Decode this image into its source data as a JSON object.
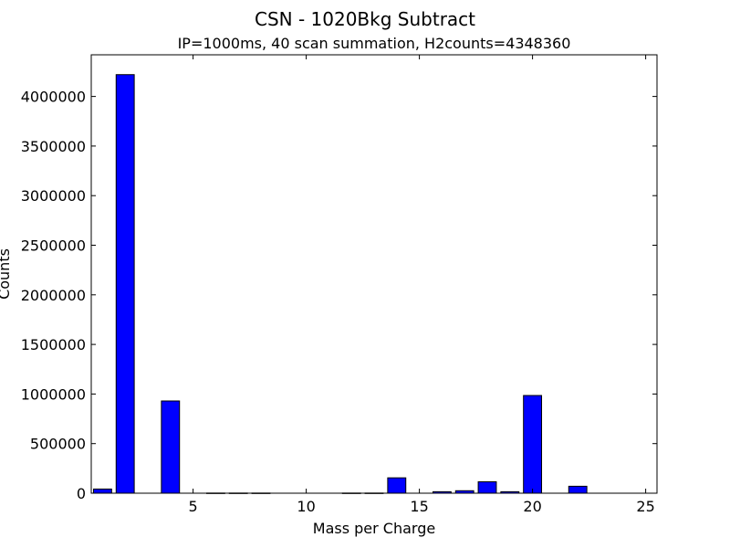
{
  "chart_data": {
    "type": "bar",
    "title": "CSN - 1020Bkg Subtract",
    "subtitle": "IP=1000ms, 40 scan summation, H2counts=4348360",
    "xlabel": "Mass per Charge",
    "ylabel": "Counts",
    "xlim": [
      0.5,
      25.5
    ],
    "ylim": [
      0,
      4420000
    ],
    "xticks": [
      5,
      10,
      15,
      20,
      25
    ],
    "yticks": [
      0,
      500000,
      1000000,
      1500000,
      2000000,
      2500000,
      3000000,
      3500000,
      4000000
    ],
    "bar_width": 0.8,
    "bar_color": "#0000ff",
    "x": [
      1,
      2,
      4,
      6,
      7,
      8,
      12,
      13,
      14,
      16,
      17,
      18,
      19,
      20,
      22
    ],
    "values": [
      42000,
      4220000,
      930000,
      1500,
      1500,
      1500,
      1500,
      1500,
      155000,
      15000,
      25000,
      115000,
      15000,
      985000,
      70000
    ]
  }
}
